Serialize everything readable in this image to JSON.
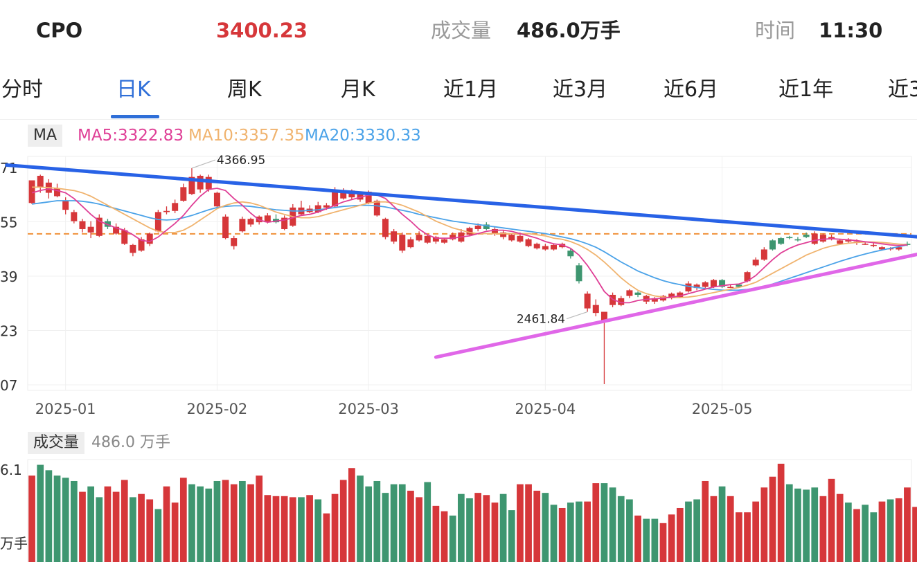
{
  "header": {
    "symbol": "CPO",
    "price": "3400.23",
    "volume_label": "成交量",
    "volume_value": "486.0万手",
    "time_label": "时间",
    "time_value": "11:30"
  },
  "tabs": [
    {
      "label": "分时",
      "active": false
    },
    {
      "label": "日K",
      "active": true
    },
    {
      "label": "周K",
      "active": false
    },
    {
      "label": "月K",
      "active": false
    },
    {
      "label": "近1月",
      "active": false
    },
    {
      "label": "近3月",
      "active": false
    },
    {
      "label": "近6月",
      "active": false
    },
    {
      "label": "近1年",
      "active": false
    },
    {
      "label": "近3",
      "active": false
    }
  ],
  "ma_legend": {
    "label": "MA",
    "ma5": "MA5:3322.83",
    "ma10": "MA10:3357.35",
    "ma20": "MA20:3330.33"
  },
  "volume_legend": {
    "label": "成交量",
    "value": "486.0 万手"
  },
  "colors": {
    "up": "#d6373a",
    "down": "#3e9670",
    "ma5": "#df3f96",
    "ma10": "#f0b36e",
    "ma20": "#4aa2e8",
    "resistance": "#2862e6",
    "support": "#e067e8",
    "level": "#f0913a",
    "active_tab": "#2f6fd8",
    "price": "#d6373a"
  },
  "chart_data": [
    {
      "type": "candlestick",
      "ylim": [
        2407,
        4471
      ],
      "y_ticks": [
        "71",
        "55",
        "39",
        "23",
        "07"
      ],
      "x_ticks": [
        "2025-01",
        "2025-02",
        "2025-03",
        "2025-04",
        "2025-05"
      ],
      "x_tick_index": [
        4,
        22,
        40,
        61,
        82
      ],
      "annotations": [
        {
          "text": "4366.95",
          "index": 19
        },
        {
          "text": "2461.84",
          "index": 66
        }
      ],
      "ohlc": [
        [
          4060,
          4260,
          4250,
          4050
        ],
        [
          4200,
          4300,
          4310,
          4150
        ],
        [
          4150,
          4240,
          4270,
          4100
        ],
        [
          4120,
          4190,
          4230,
          4110
        ],
        [
          4000,
          4080,
          4110,
          3960
        ],
        [
          3900,
          3980,
          4000,
          3880
        ],
        [
          3830,
          3900,
          3920,
          3800
        ],
        [
          3800,
          3850,
          3900,
          3750
        ],
        [
          3770,
          3930,
          3960,
          3760
        ],
        [
          3900,
          3850,
          3920,
          3830
        ],
        [
          3790,
          3850,
          3880,
          3780
        ],
        [
          3700,
          3820,
          3840,
          3690
        ],
        [
          3620,
          3690,
          3700,
          3590
        ],
        [
          3640,
          3740,
          3760,
          3630
        ],
        [
          3700,
          3790,
          3800,
          3680
        ],
        [
          3810,
          3980,
          4000,
          3800
        ],
        [
          3980,
          3990,
          4030,
          3960
        ],
        [
          3990,
          4060,
          4090,
          3970
        ],
        [
          4080,
          4200,
          4230,
          4070
        ],
        [
          4140,
          4290,
          4367,
          4130
        ],
        [
          4180,
          4300,
          4310,
          4150
        ],
        [
          4180,
          4290,
          4310,
          4160
        ],
        [
          4030,
          4150,
          4160,
          4020
        ],
        [
          3750,
          3940,
          3960,
          3740
        ],
        [
          3680,
          3750,
          3770,
          3650
        ],
        [
          3810,
          3920,
          3940,
          3800
        ],
        [
          3870,
          3920,
          3930,
          3850
        ],
        [
          3890,
          3940,
          3950,
          3870
        ],
        [
          3890,
          3950,
          3970,
          3880
        ],
        [
          3920,
          3890,
          3960,
          3880
        ],
        [
          3830,
          3930,
          3950,
          3820
        ],
        [
          3860,
          4020,
          4050,
          3850
        ],
        [
          3960,
          4020,
          4080,
          3950
        ],
        [
          3980,
          4010,
          4040,
          3970
        ],
        [
          3980,
          4040,
          4070,
          3970
        ],
        [
          4020,
          4040,
          4060,
          4000
        ],
        [
          4030,
          4160,
          4200,
          4020
        ],
        [
          4100,
          4170,
          4190,
          4090
        ],
        [
          4110,
          4170,
          4180,
          4090
        ],
        [
          4090,
          4150,
          4160,
          4070
        ],
        [
          4060,
          4160,
          4170,
          4050
        ],
        [
          3950,
          4080,
          4090,
          3940
        ],
        [
          3760,
          3920,
          3930,
          3740
        ],
        [
          3720,
          3810,
          3830,
          3700
        ],
        [
          3640,
          3780,
          3800,
          3620
        ],
        [
          3670,
          3740,
          3760,
          3660
        ],
        [
          3730,
          3780,
          3810,
          3720
        ],
        [
          3710,
          3770,
          3780,
          3700
        ],
        [
          3720,
          3760,
          3770,
          3700
        ],
        [
          3710,
          3740,
          3750,
          3700
        ],
        [
          3740,
          3780,
          3800,
          3730
        ],
        [
          3720,
          3800,
          3830,
          3710
        ],
        [
          3780,
          3840,
          3850,
          3770
        ],
        [
          3830,
          3860,
          3880,
          3810
        ],
        [
          3870,
          3830,
          3890,
          3820
        ],
        [
          3790,
          3830,
          3850,
          3770
        ],
        [
          3760,
          3800,
          3820,
          3740
        ],
        [
          3730,
          3780,
          3790,
          3720
        ],
        [
          3720,
          3770,
          3800,
          3710
        ],
        [
          3680,
          3740,
          3750,
          3670
        ],
        [
          3660,
          3700,
          3710,
          3650
        ],
        [
          3650,
          3680,
          3700,
          3640
        ],
        [
          3650,
          3690,
          3700,
          3640
        ],
        [
          3670,
          3700,
          3710,
          3660
        ],
        [
          3640,
          3590,
          3660,
          3570
        ],
        [
          3510,
          3370,
          3530,
          3350
        ],
        [
          3130,
          3260,
          3280,
          3100
        ],
        [
          3090,
          3160,
          3210,
          3060
        ],
        [
          3010,
          3100,
          3100,
          2462
        ],
        [
          3160,
          3250,
          3270,
          3140
        ],
        [
          3160,
          3220,
          3240,
          3150
        ],
        [
          3240,
          3290,
          3300,
          3220
        ],
        [
          3270,
          3250,
          3280,
          3230
        ],
        [
          3190,
          3240,
          3250,
          3170
        ],
        [
          3190,
          3220,
          3230,
          3170
        ],
        [
          3200,
          3240,
          3250,
          3190
        ],
        [
          3220,
          3260,
          3270,
          3210
        ],
        [
          3230,
          3270,
          3280,
          3220
        ],
        [
          3280,
          3350,
          3370,
          3270
        ],
        [
          3310,
          3340,
          3350,
          3290
        ],
        [
          3320,
          3360,
          3370,
          3310
        ],
        [
          3320,
          3380,
          3390,
          3310
        ],
        [
          3380,
          3320,
          3390,
          3310
        ],
        [
          3320,
          3320,
          3340,
          3310
        ],
        [
          3340,
          3320,
          3350,
          3310
        ],
        [
          3370,
          3450,
          3460,
          3360
        ],
        [
          3510,
          3560,
          3580,
          3500
        ],
        [
          3560,
          3650,
          3670,
          3550
        ],
        [
          3730,
          3650,
          3740,
          3640
        ],
        [
          3750,
          3700,
          3760,
          3690
        ],
        [
          3760,
          3750,
          3770,
          3740
        ],
        [
          3740,
          3730,
          3760,
          3720
        ],
        [
          3780,
          3760,
          3800,
          3750
        ],
        [
          3700,
          3790,
          3810,
          3690
        ],
        [
          3720,
          3780,
          3790,
          3710
        ],
        [
          3740,
          3760,
          3780,
          3730
        ],
        [
          3700,
          3730,
          3740,
          3690
        ],
        [
          3720,
          3740,
          3750,
          3710
        ],
        [
          3710,
          3720,
          3740,
          3690
        ],
        [
          3700,
          3700,
          3720,
          3690
        ],
        [
          3690,
          3690,
          3710,
          3670
        ],
        [
          3650,
          3670,
          3680,
          3640
        ],
        [
          3660,
          3660,
          3670,
          3640
        ],
        [
          3650,
          3670,
          3690,
          3640
        ],
        [
          3700,
          3690,
          3720,
          3680
        ]
      ],
      "ma5": [
        4150,
        4170,
        4185,
        4170,
        4150,
        4100,
        4030,
        3960,
        3900,
        3870,
        3840,
        3820,
        3780,
        3730,
        3720,
        3760,
        3820,
        3880,
        3950,
        4040,
        4120,
        4180,
        4190,
        4170,
        4100,
        4040,
        3970,
        3910,
        3890,
        3900,
        3910,
        3930,
        3950,
        3960,
        3980,
        4010,
        4040,
        4070,
        4090,
        4110,
        4130,
        4130,
        4100,
        4030,
        3960,
        3900,
        3830,
        3780,
        3750,
        3750,
        3750,
        3760,
        3770,
        3790,
        3810,
        3820,
        3820,
        3810,
        3790,
        3770,
        3750,
        3720,
        3700,
        3690,
        3660,
        3600,
        3510,
        3400,
        3280,
        3210,
        3180,
        3180,
        3200,
        3210,
        3215,
        3220,
        3230,
        3240,
        3260,
        3280,
        3300,
        3320,
        3330,
        3340,
        3345,
        3370,
        3420,
        3490,
        3560,
        3620,
        3660,
        3690,
        3710,
        3730,
        3740,
        3745,
        3740,
        3735,
        3728,
        3718,
        3710,
        3700,
        3690,
        3685,
        3690
      ],
      "ma10": [
        4200,
        4200,
        4195,
        4190,
        4180,
        4170,
        4150,
        4120,
        4080,
        4040,
        4000,
        3960,
        3920,
        3880,
        3840,
        3810,
        3800,
        3800,
        3820,
        3860,
        3910,
        3960,
        4010,
        4040,
        4060,
        4070,
        4060,
        4040,
        4010,
        3980,
        3960,
        3940,
        3930,
        3930,
        3940,
        3960,
        3980,
        4000,
        4020,
        4040,
        4060,
        4070,
        4070,
        4060,
        4040,
        4010,
        3980,
        3940,
        3900,
        3870,
        3840,
        3820,
        3800,
        3790,
        3790,
        3790,
        3790,
        3790,
        3790,
        3790,
        3780,
        3770,
        3750,
        3740,
        3720,
        3690,
        3650,
        3600,
        3540,
        3470,
        3400,
        3340,
        3290,
        3260,
        3240,
        3230,
        3225,
        3225,
        3230,
        3240,
        3255,
        3270,
        3285,
        3300,
        3315,
        3335,
        3360,
        3400,
        3440,
        3480,
        3520,
        3560,
        3600,
        3630,
        3660,
        3680,
        3695,
        3705,
        3712,
        3716,
        3716,
        3712,
        3705,
        3698,
        3692
      ],
      "ma20": [
        4050,
        4060,
        4070,
        4080,
        4080,
        4080,
        4075,
        4065,
        4050,
        4030,
        4010,
        3990,
        3970,
        3950,
        3930,
        3915,
        3910,
        3915,
        3930,
        3950,
        3975,
        4000,
        4020,
        4030,
        4035,
        4035,
        4030,
        4020,
        4010,
        4000,
        3995,
        3990,
        3990,
        3995,
        4000,
        4010,
        4020,
        4030,
        4035,
        4040,
        4040,
        4035,
        4025,
        4010,
        3995,
        3980,
        3960,
        3945,
        3930,
        3915,
        3900,
        3890,
        3880,
        3870,
        3860,
        3850,
        3840,
        3830,
        3820,
        3810,
        3800,
        3790,
        3775,
        3760,
        3745,
        3725,
        3700,
        3670,
        3630,
        3585,
        3540,
        3500,
        3460,
        3430,
        3400,
        3375,
        3355,
        3340,
        3325,
        3315,
        3305,
        3298,
        3292,
        3290,
        3292,
        3298,
        3310,
        3325,
        3345,
        3370,
        3395,
        3420,
        3445,
        3470,
        3495,
        3520,
        3545,
        3568,
        3590,
        3610,
        3628,
        3645,
        3660,
        3675,
        3690
      ],
      "reference_level": 3788,
      "trendlines": [
        {
          "name": "resistance",
          "from": [
            -3,
            4395
          ],
          "to": [
            106,
            3757
          ]
        },
        {
          "name": "support",
          "from": [
            48,
            2700
          ],
          "to": [
            106,
            3620
          ]
        }
      ]
    },
    {
      "type": "bar",
      "y_ticks": [
        "6.1",
        "万手"
      ],
      "values": [
        8,
        9,
        8.5,
        8,
        7.8,
        7.5,
        6.5,
        7,
        6,
        7,
        6.5,
        7.6,
        6,
        6.3,
        5.8,
        4.9,
        7,
        5.5,
        7.8,
        7.2,
        7,
        6.8,
        7.5,
        7.6,
        7.2,
        7.5,
        7.2,
        8,
        6.2,
        6.1,
        6.1,
        6,
        6,
        6.2,
        5.8,
        4.5,
        6.3,
        7.6,
        8.7,
        8,
        7,
        7.5,
        6.4,
        7.2,
        7.2,
        6.6,
        6,
        7.4,
        5.2,
        4.7,
        4.3,
        6.3,
        5.9,
        6.4,
        6.2,
        5.5,
        6.3,
        4.8,
        7.2,
        7.2,
        6.6,
        6.4,
        5.3,
        5,
        5.5,
        5.6,
        5.6,
        7.3,
        7.3,
        6.9,
        6.1,
        5.8,
        4.3,
        4,
        4,
        3.6,
        4.4,
        5,
        5.6,
        5.8,
        7.5,
        6.1,
        7,
        6.1,
        4.6,
        4.6,
        5.6,
        6.9,
        7.9,
        9.1,
        7.2,
        6.8,
        6.7,
        6.9,
        6.1,
        7.7,
        6.3,
        5.5,
        4.9,
        5.3,
        4.6,
        5.6,
        5.8,
        5.9,
        6.9,
        5.1
      ],
      "up": [
        1,
        0,
        0,
        0,
        0,
        0,
        1,
        0,
        0,
        1,
        1,
        1,
        0,
        1,
        1,
        0,
        1,
        1,
        1,
        0,
        0,
        0,
        0,
        1,
        1,
        0,
        1,
        1,
        1,
        1,
        1,
        1,
        0,
        1,
        0,
        1,
        1,
        1,
        1,
        0,
        0,
        0,
        0,
        0,
        0,
        1,
        1,
        0,
        1,
        1,
        0,
        0,
        0,
        1,
        1,
        1,
        0,
        0,
        1,
        1,
        1,
        0,
        0,
        1,
        0,
        0,
        1,
        1,
        0,
        0,
        0,
        0,
        1,
        0,
        0,
        1,
        1,
        1,
        0,
        0,
        1,
        1,
        0,
        1,
        1,
        1,
        1,
        1,
        1,
        1,
        0,
        0,
        0,
        0,
        1,
        1,
        1,
        0,
        1,
        0,
        0,
        1,
        0,
        1,
        1,
        1
      ]
    }
  ]
}
